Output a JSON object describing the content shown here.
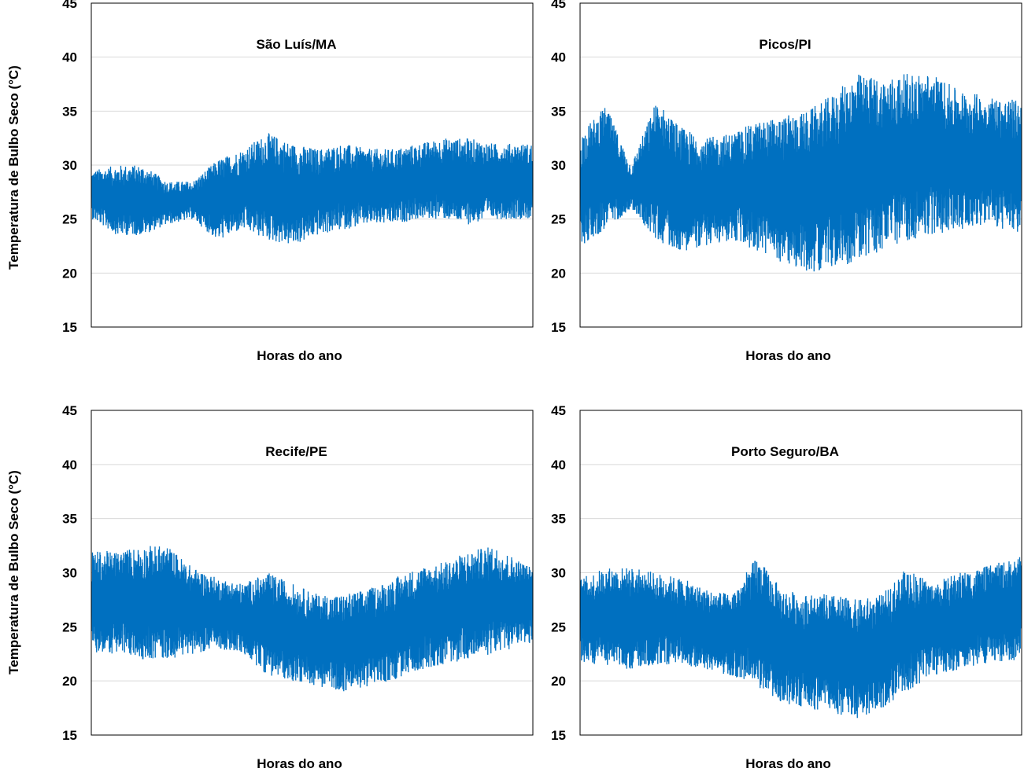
{
  "figure": {
    "y_axis_label_top": "Temperatura de Bulbo Seco (°C)",
    "y_axis_label_bottom": "Temperatura de Bulbo Seco (°C)"
  },
  "chart_data": [
    {
      "type": "line",
      "title": "São Luís/MA",
      "xlabel": "Horas do ano",
      "ylabel": "Temperatura de Bulbo Seco (°C)",
      "ylim": [
        15,
        45
      ],
      "yticks": [
        "15",
        "20",
        "25",
        "30",
        "35",
        "40",
        "45"
      ],
      "grid": true,
      "color": "#0070C0",
      "series": [
        {
          "x": [
            0,
            500,
            1000,
            1500,
            2000,
            2500,
            3000,
            3500,
            4000,
            4500,
            5000,
            5500,
            6000,
            6500,
            7000,
            7500,
            8000,
            8760
          ],
          "min": [
            25.0,
            23.5,
            23.5,
            24.5,
            25.0,
            23.0,
            24.0,
            23.0,
            22.5,
            23.5,
            24.0,
            24.5,
            24.5,
            25.0,
            25.0,
            24.5,
            25.0,
            25.0
          ],
          "max": [
            29.5,
            30.0,
            30.0,
            28.5,
            28.5,
            30.5,
            31.5,
            33.0,
            32.0,
            31.5,
            32.0,
            31.5,
            31.5,
            32.0,
            32.5,
            32.5,
            32.0,
            32.0
          ]
        }
      ]
    },
    {
      "type": "line",
      "title": "Picos/PI",
      "xlabel": "Horas do ano",
      "ylabel": "",
      "ylim": [
        15,
        45
      ],
      "yticks": [
        "15",
        "20",
        "25",
        "30",
        "35",
        "40",
        "45"
      ],
      "grid": true,
      "color": "#0070C0",
      "series": [
        {
          "x": [
            0,
            500,
            1000,
            1500,
            2000,
            2500,
            3000,
            3500,
            4000,
            4500,
            5000,
            5500,
            6000,
            6500,
            7000,
            7500,
            8000,
            8760
          ],
          "min": [
            22.5,
            24.0,
            26.0,
            23.0,
            22.0,
            22.5,
            23.0,
            22.0,
            21.0,
            20.0,
            20.5,
            21.0,
            22.0,
            23.0,
            23.5,
            24.0,
            24.5,
            23.5
          ],
          "max": [
            33.0,
            35.5,
            30.0,
            36.0,
            33.5,
            32.5,
            33.0,
            34.0,
            34.5,
            35.0,
            36.5,
            38.5,
            38.0,
            38.5,
            38.5,
            37.0,
            36.5,
            36.0
          ]
        }
      ]
    },
    {
      "type": "line",
      "title": "Recife/PE",
      "xlabel": "Horas do ano",
      "ylabel": "Temperatura de Bulbo Seco (°C)",
      "ylim": [
        15,
        45
      ],
      "yticks": [
        "15",
        "20",
        "25",
        "30",
        "35",
        "40",
        "45"
      ],
      "grid": true,
      "color": "#0070C0",
      "series": [
        {
          "x": [
            0,
            500,
            1000,
            1500,
            2000,
            2500,
            3000,
            3500,
            4000,
            4500,
            5000,
            5500,
            6000,
            6500,
            7000,
            7500,
            8000,
            8760
          ],
          "min": [
            22.5,
            22.5,
            22.0,
            22.0,
            22.5,
            23.0,
            22.5,
            20.5,
            20.0,
            19.5,
            19.0,
            19.5,
            20.0,
            21.0,
            21.5,
            22.0,
            22.5,
            23.5
          ],
          "max": [
            32.0,
            32.0,
            32.5,
            32.5,
            30.5,
            29.5,
            29.0,
            30.0,
            29.0,
            28.0,
            28.0,
            28.5,
            29.5,
            30.5,
            31.0,
            32.0,
            32.5,
            30.5
          ]
        }
      ]
    },
    {
      "type": "line",
      "title": "Porto Seguro/BA",
      "xlabel": "Horas do ano",
      "ylabel": "",
      "ylim": [
        15,
        45
      ],
      "yticks": [
        "15",
        "20",
        "25",
        "30",
        "35",
        "40",
        "45"
      ],
      "grid": true,
      "color": "#0070C0",
      "series": [
        {
          "x": [
            0,
            500,
            1000,
            1500,
            2000,
            2500,
            3000,
            3500,
            4000,
            4500,
            5000,
            5500,
            6000,
            6500,
            7000,
            7500,
            8000,
            8760
          ],
          "min": [
            21.5,
            21.5,
            21.0,
            21.5,
            21.5,
            21.0,
            20.5,
            19.5,
            18.0,
            17.5,
            17.0,
            16.5,
            17.5,
            19.0,
            20.5,
            21.0,
            21.5,
            22.0
          ],
          "max": [
            29.5,
            30.5,
            30.5,
            30.0,
            29.5,
            28.5,
            28.0,
            31.5,
            28.5,
            28.0,
            28.0,
            27.5,
            28.0,
            30.5,
            29.0,
            30.0,
            30.5,
            31.5
          ]
        }
      ]
    }
  ]
}
